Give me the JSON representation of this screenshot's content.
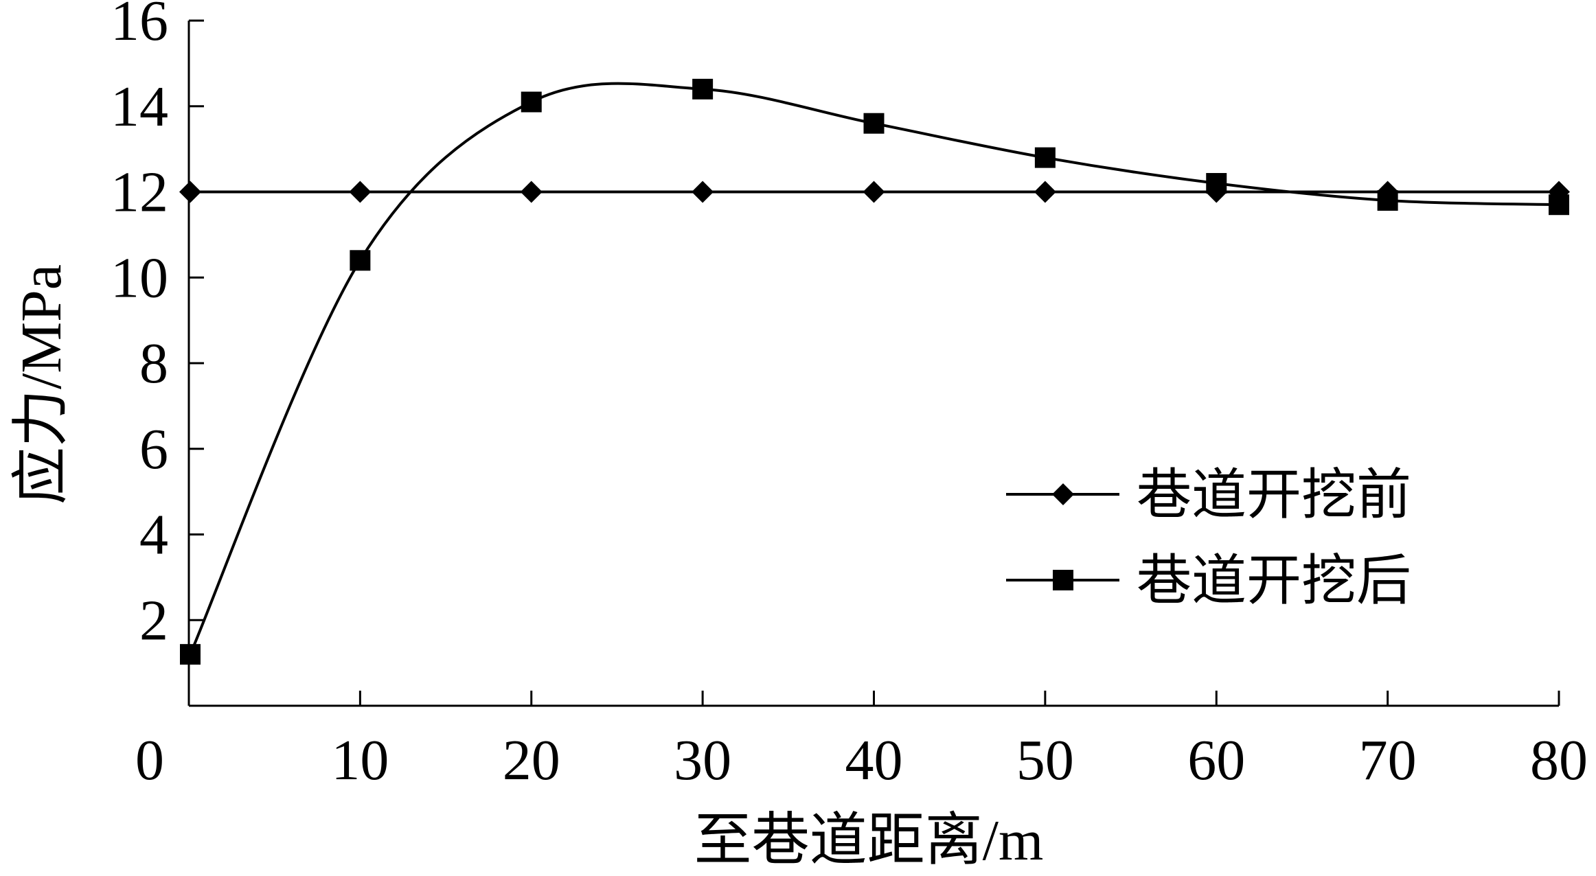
{
  "chart_data": {
    "type": "line",
    "xlabel": "至巷道距离/m",
    "ylabel": "应力/MPa",
    "xlim": [
      0,
      80
    ],
    "ylim": [
      0,
      16
    ],
    "x_ticks": [
      "0",
      "10",
      "20",
      "30",
      "40",
      "50",
      "60",
      "70",
      "80"
    ],
    "y_ticks": [
      "2",
      "4",
      "6",
      "8",
      "10",
      "12",
      "14",
      "16"
    ],
    "grid": false,
    "legend_position": "center-right",
    "series": [
      {
        "name": "巷道开挖前",
        "marker": "diamond",
        "smooth": false,
        "x": [
          0,
          10,
          20,
          30,
          40,
          50,
          60,
          70,
          80
        ],
        "y": [
          12,
          12,
          12,
          12,
          12,
          12,
          12,
          12,
          12
        ]
      },
      {
        "name": "巷道开挖后",
        "marker": "square",
        "smooth": true,
        "x": [
          0,
          10,
          20,
          30,
          40,
          50,
          60,
          70,
          80
        ],
        "y": [
          1.2,
          10.4,
          14.1,
          14.4,
          13.6,
          12.8,
          12.2,
          11.8,
          11.7
        ]
      }
    ]
  }
}
